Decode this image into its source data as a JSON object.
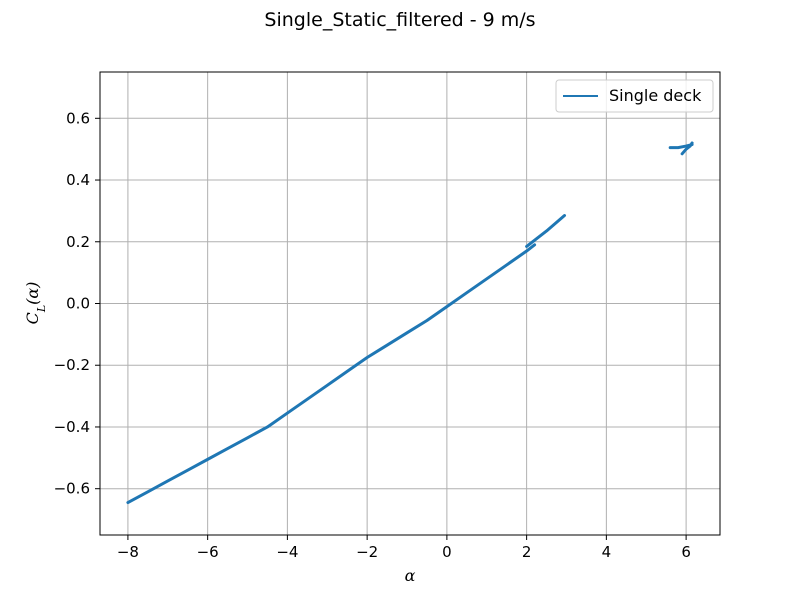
{
  "chart_data": {
    "type": "line",
    "title": "Single_Static_filtered - 9 m/s",
    "xlabel": "α",
    "ylabel": "C_L(α)",
    "xlim": [
      -8.7,
      6.85
    ],
    "ylim": [
      -0.75,
      0.75
    ],
    "xticks": [
      -8,
      -6,
      -4,
      -2,
      0,
      2,
      4,
      6
    ],
    "yticks": [
      -0.6,
      -0.4,
      -0.2,
      0.0,
      0.2,
      0.4,
      0.6
    ],
    "xtick_labels": [
      "−8",
      "−6",
      "−4",
      "−2",
      "0",
      "2",
      "4",
      "6"
    ],
    "ytick_labels": [
      "−0.6",
      "−0.4",
      "−0.2",
      "0.0",
      "0.2",
      "0.4",
      "0.6"
    ],
    "grid": true,
    "legend_position": "top-right",
    "series_color": "#1f77b4",
    "series": [
      {
        "name": "Single deck",
        "segments": [
          {
            "x": [
              -8.0,
              -7.5,
              -7.0,
              -6.5,
              -6.0,
              -5.5,
              -5.0,
              -4.5,
              -4.0,
              -3.5,
              -3.0,
              -2.5,
              -2.0,
              -1.5,
              -1.0,
              -0.5,
              0.0,
              0.5,
              1.0,
              1.5,
              2.0,
              2.2
            ],
            "y": [
              -0.645,
              -0.61,
              -0.575,
              -0.54,
              -0.505,
              -0.47,
              -0.435,
              -0.4,
              -0.355,
              -0.31,
              -0.265,
              -0.22,
              -0.175,
              -0.135,
              -0.095,
              -0.055,
              -0.01,
              0.035,
              0.08,
              0.125,
              0.17,
              0.19
            ]
          },
          {
            "x": [
              2.0,
              2.5,
              2.95
            ],
            "y": [
              0.185,
              0.235,
              0.285
            ]
          },
          {
            "x": [
              5.6,
              5.8,
              6.0,
              6.15
            ],
            "y": [
              0.505,
              0.505,
              0.51,
              0.515
            ]
          },
          {
            "x": [
              5.9,
              6.0,
              6.1,
              6.15
            ],
            "y": [
              0.485,
              0.5,
              0.51,
              0.52
            ]
          }
        ]
      }
    ]
  }
}
